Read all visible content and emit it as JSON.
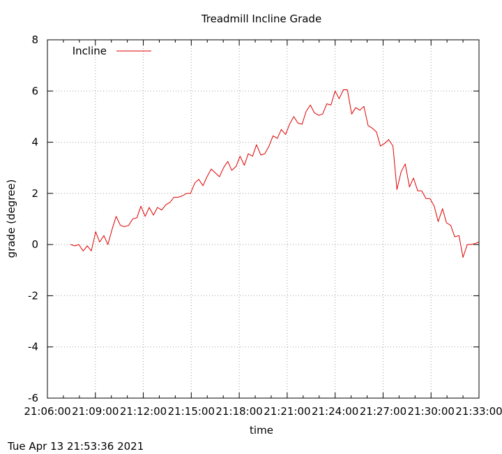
{
  "chart_data": {
    "type": "line",
    "title": "Treadmill Incline Grade",
    "xlabel": "time",
    "ylabel": "grade (degree)",
    "ylim": [
      -6,
      8
    ],
    "yticks": [
      -6,
      -4,
      -2,
      0,
      2,
      4,
      6,
      8
    ],
    "xlim": [
      "21:06:00",
      "21:33:00"
    ],
    "xticks": [
      "21:06:00",
      "21:09:00",
      "21:12:00",
      "21:15:00",
      "21:18:00",
      "21:21:00",
      "21:24:00",
      "21:27:00",
      "21:30:00",
      "21:33:00"
    ],
    "x_minor_ticks_per_interval": 3,
    "grid": true,
    "legend_position": "top-left",
    "series": [
      {
        "name": "Incline",
        "color": "#dd0000",
        "x": [
          "21:07:27",
          "21:07:43",
          "21:07:58",
          "21:08:14",
          "21:08:30",
          "21:08:45",
          "21:09:01",
          "21:09:16",
          "21:09:32",
          "21:09:47",
          "21:10:03",
          "21:10:18",
          "21:10:34",
          "21:10:49",
          "21:11:05",
          "21:11:20",
          "21:11:36",
          "21:11:51",
          "21:12:07",
          "21:12:22",
          "21:12:38",
          "21:12:53",
          "21:13:09",
          "21:13:24",
          "21:13:40",
          "21:13:55",
          "21:14:11",
          "21:14:26",
          "21:14:42",
          "21:14:57",
          "21:15:13",
          "21:15:28",
          "21:15:44",
          "21:15:59",
          "21:16:15",
          "21:16:30",
          "21:16:46",
          "21:17:01",
          "21:17:17",
          "21:17:32",
          "21:17:48",
          "21:18:03",
          "21:18:19",
          "21:18:34",
          "21:18:50",
          "21:19:05",
          "21:19:21",
          "21:19:36",
          "21:19:52",
          "21:20:07",
          "21:20:23",
          "21:20:38",
          "21:20:54",
          "21:21:09",
          "21:21:25",
          "21:21:40",
          "21:21:56",
          "21:22:11",
          "21:22:27",
          "21:22:42",
          "21:22:58",
          "21:23:13",
          "21:23:29",
          "21:23:44",
          "21:24:00",
          "21:24:15",
          "21:24:31",
          "21:24:46",
          "21:25:02",
          "21:25:17",
          "21:25:33",
          "21:25:48",
          "21:26:04",
          "21:26:19",
          "21:26:35",
          "21:26:50",
          "21:27:06",
          "21:27:21",
          "21:27:37",
          "21:27:52",
          "21:28:08",
          "21:28:23",
          "21:28:39",
          "21:28:54",
          "21:29:10",
          "21:29:25",
          "21:29:41",
          "21:29:56",
          "21:30:12",
          "21:30:27",
          "21:30:43",
          "21:30:58",
          "21:31:14",
          "21:31:29",
          "21:31:45",
          "21:32:00",
          "21:32:16",
          "21:32:31",
          "21:32:47",
          "21:33:00"
        ],
        "values": [
          0.0,
          -0.05,
          0.0,
          -0.25,
          -0.05,
          -0.25,
          0.5,
          0.1,
          0.35,
          0.0,
          0.6,
          1.1,
          0.75,
          0.7,
          0.75,
          1.0,
          1.05,
          1.5,
          1.1,
          1.45,
          1.15,
          1.45,
          1.35,
          1.55,
          1.65,
          1.85,
          1.85,
          1.9,
          2.0,
          2.0,
          2.4,
          2.55,
          2.3,
          2.65,
          2.95,
          2.8,
          2.65,
          3.0,
          3.25,
          2.9,
          3.05,
          3.45,
          3.1,
          3.55,
          3.45,
          3.9,
          3.5,
          3.55,
          3.85,
          4.25,
          4.15,
          4.5,
          4.3,
          4.7,
          5.0,
          4.75,
          4.7,
          5.2,
          5.45,
          5.15,
          5.05,
          5.1,
          5.5,
          5.45,
          6.0,
          5.7,
          6.05,
          6.05,
          5.1,
          5.35,
          5.25,
          5.4,
          4.65,
          4.55,
          4.4,
          3.85,
          3.95,
          4.1,
          3.85,
          2.15,
          2.85,
          3.15,
          2.25,
          2.6,
          2.1,
          2.1,
          1.8,
          1.8,
          1.5,
          0.9,
          1.4,
          0.85,
          0.75,
          0.3,
          0.35,
          -0.5,
          0.0,
          0.0,
          0.05,
          0.1
        ]
      }
    ]
  },
  "footer_text": "Tue Apr 13 21:53:36 2021"
}
